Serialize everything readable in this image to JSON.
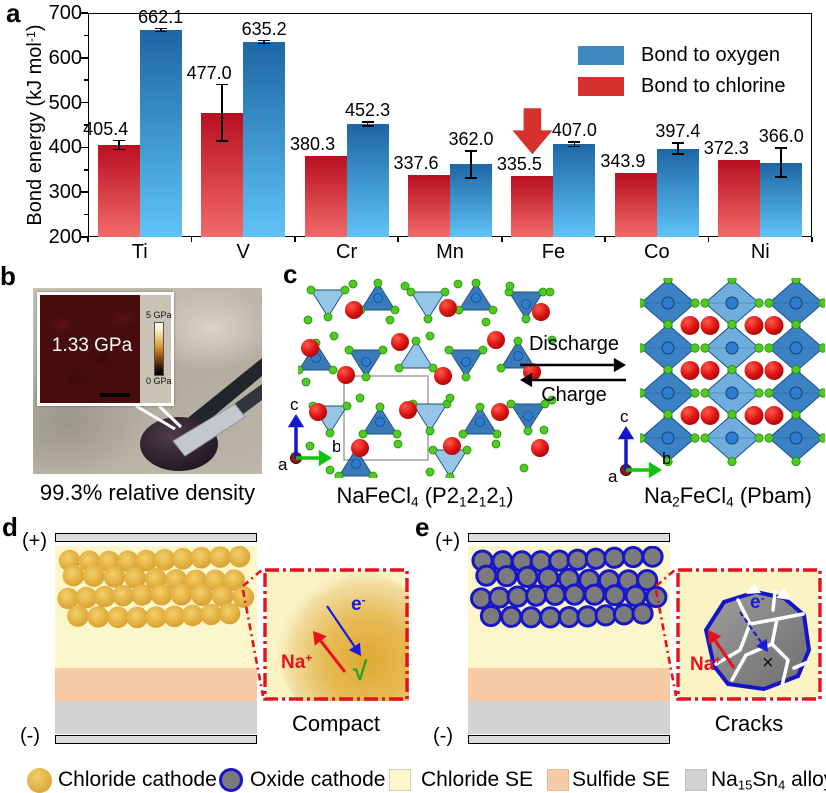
{
  "figure": {
    "panel_labels": {
      "a": "a",
      "b": "b",
      "c": "c",
      "d": "d",
      "e": "e"
    }
  },
  "chart_data": {
    "type": "bar",
    "title": "",
    "ylabel_parts": {
      "main": "Bond energy (kJ mol",
      "sup": "-1",
      "close": ")"
    },
    "ylim": [
      200,
      700
    ],
    "yticks": [
      200,
      300,
      400,
      500,
      600,
      700
    ],
    "categories": [
      "Ti",
      "V",
      "Cr",
      "Mn",
      "Fe",
      "Co",
      "Ni"
    ],
    "series": [
      {
        "name": "Bond to oxygen",
        "color_top": "#1d66a5",
        "color_bottom": "#5fc3f6",
        "legend_color": "#3d89c0",
        "values": [
          662.1,
          635.2,
          452.3,
          362.0,
          407.0,
          397.4,
          366.0
        ],
        "errors": [
          3,
          3,
          4,
          30,
          5,
          12,
          32
        ]
      },
      {
        "name": "Bond to chlorine",
        "color_top": "#b90f1f",
        "color_bottom": "#f16a6a",
        "legend_color": "#d6302f",
        "values": [
          405.4,
          477.0,
          380.3,
          337.6,
          335.5,
          343.9,
          372.3
        ],
        "errors": [
          10,
          63,
          0,
          0,
          0,
          0,
          0
        ]
      }
    ],
    "annotation": {
      "shape": "down-arrow",
      "category": "Fe",
      "series": "Bond to chlorine",
      "color": "#d6302f"
    },
    "legend_position": "top-right",
    "grid": false
  },
  "panel_b": {
    "inset_value": "1.33 GPa",
    "scale_top": "5 GPa",
    "scale_bottom": "0 GPa",
    "caption": "99.3% relative density"
  },
  "panel_c": {
    "discharge": "Discharge",
    "charge": "Charge",
    "axes": {
      "a": "a",
      "b": "b",
      "c": "c"
    },
    "left_caption": {
      "t1": "NaFeCl",
      "s1": "4",
      "t2": " (P2",
      "s2": "1",
      "t3": "2",
      "s3": "1",
      "t4": "2",
      "s4": "1",
      "t5": ")"
    },
    "right_caption": {
      "t1": "Na",
      "s1": "2",
      "t2": "FeCl",
      "s2": "4",
      "t3": " (Pbam)"
    }
  },
  "panel_d": {
    "plus": "(+)",
    "minus": "(-)",
    "na": "Na",
    "na_sup": "+",
    "e": "e",
    "e_sup": "-",
    "check": "√",
    "caption": "Compact"
  },
  "panel_e": {
    "plus": "(+)",
    "minus": "(-)",
    "na": "Na",
    "na_sup": "+",
    "e": "e",
    "e_sup": "-",
    "cross": "×",
    "caption": "Cracks"
  },
  "legend": {
    "chloride_cathode": "Chloride cathode",
    "oxide_cathode": "Oxide cathode",
    "chloride_se": "Chloride SE",
    "sulfide_se": "Sulfide SE",
    "alloy": {
      "t1": "Na",
      "s1": "15",
      "t2": "Sn",
      "s2": "4",
      "t3": " alloy"
    }
  },
  "colors": {
    "chloride_cathode": "#e2b244",
    "oxide_cathode_fill": "#7b7b7b",
    "oxide_cathode_border": "#1717c9",
    "chloride_se": "#fcf6cb",
    "sulfide_se": "#f8cba6",
    "alloy": "#d3d3d3",
    "electrode": "#dcdcdc",
    "callout_red": "#e8101e"
  }
}
